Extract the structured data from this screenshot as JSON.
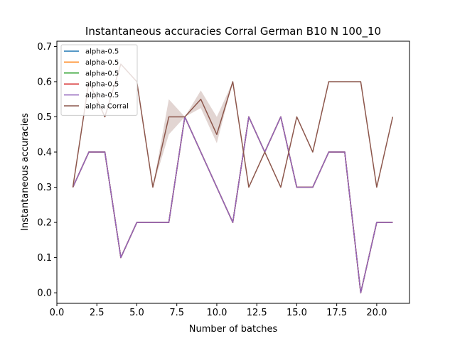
{
  "chart_data": {
    "type": "line",
    "title": "Instantaneous accuracies Corral German B10 N 100_10",
    "xlabel": "Number of batches",
    "ylabel": "Instantaneous accuracies",
    "xlim": [
      0,
      22.05
    ],
    "ylim": [
      -0.03,
      0.715
    ],
    "xticks": [
      0.0,
      2.5,
      5.0,
      7.5,
      10.0,
      12.5,
      15.0,
      17.5,
      20.0
    ],
    "xtick_labels": [
      "0.0",
      "2.5",
      "5.0",
      "7.5",
      "10.0",
      "12.5",
      "15.0",
      "17.5",
      "20.0"
    ],
    "yticks": [
      0.0,
      0.1,
      0.2,
      0.3,
      0.4,
      0.5,
      0.6,
      0.7
    ],
    "ytick_labels": [
      "0.0",
      "0.1",
      "0.2",
      "0.3",
      "0.4",
      "0.5",
      "0.6",
      "0.7"
    ],
    "grid": false,
    "legend_position": "top-left",
    "x": [
      1,
      2,
      3,
      4,
      5,
      6,
      7,
      8,
      9,
      10,
      11,
      12,
      13,
      14,
      15,
      16,
      17,
      18,
      19,
      20,
      21
    ],
    "series": [
      {
        "name": "alpha-0.5",
        "color": "#1f77b4",
        "values": [
          0.3,
          0.4,
          0.4,
          0.1,
          0.2,
          0.2,
          0.2,
          0.5,
          0.4,
          0.3,
          0.2,
          0.5,
          0.4,
          0.5,
          0.3,
          0.3,
          0.4,
          0.4,
          0.0,
          0.2,
          0.2
        ]
      },
      {
        "name": "alpha-0.5",
        "color": "#ff7f0e",
        "values": [
          0.3,
          0.4,
          0.4,
          0.1,
          0.2,
          0.2,
          0.2,
          0.5,
          0.4,
          0.3,
          0.2,
          0.5,
          0.4,
          0.5,
          0.3,
          0.3,
          0.4,
          0.4,
          0.0,
          0.2,
          0.2
        ]
      },
      {
        "name": "alpha-0.5",
        "color": "#2ca02c",
        "values": [
          0.3,
          0.4,
          0.4,
          0.1,
          0.2,
          0.2,
          0.2,
          0.5,
          0.4,
          0.3,
          0.2,
          0.5,
          0.4,
          0.5,
          0.3,
          0.3,
          0.4,
          0.4,
          0.0,
          0.2,
          0.2
        ]
      },
      {
        "name": "alpha-0.5",
        "color": "#d62728",
        "values": [
          0.3,
          0.4,
          0.4,
          0.1,
          0.2,
          0.2,
          0.2,
          0.5,
          0.4,
          0.3,
          0.2,
          0.5,
          0.4,
          0.5,
          0.3,
          0.3,
          0.4,
          0.4,
          0.0,
          0.2,
          0.2
        ]
      },
      {
        "name": "alpha-0.5",
        "color": "#9467bd",
        "values": [
          0.3,
          0.4,
          0.4,
          0.1,
          0.2,
          0.2,
          0.2,
          0.5,
          0.4,
          0.3,
          0.2,
          0.5,
          0.4,
          0.5,
          0.3,
          0.3,
          0.4,
          0.4,
          0.0,
          0.2,
          0.2
        ]
      },
      {
        "name": "alpha Corral",
        "color": "#8c564b",
        "values": [
          0.3,
          0.6,
          0.5,
          0.65,
          0.6,
          0.3,
          0.5,
          0.5,
          0.55,
          0.45,
          0.6,
          0.3,
          0.4,
          0.3,
          0.5,
          0.4,
          0.6,
          0.6,
          0.6,
          0.3,
          0.5
        ],
        "band_low": [
          0.3,
          0.6,
          0.5,
          0.65,
          0.6,
          0.3,
          0.45,
          0.5,
          0.525,
          0.425,
          0.6,
          0.3,
          0.4,
          0.3,
          0.5,
          0.4,
          0.6,
          0.6,
          0.6,
          0.3,
          0.5
        ],
        "band_high": [
          0.3,
          0.6,
          0.5,
          0.65,
          0.6,
          0.3,
          0.55,
          0.5,
          0.575,
          0.5,
          0.6,
          0.3,
          0.4,
          0.3,
          0.5,
          0.4,
          0.6,
          0.6,
          0.6,
          0.3,
          0.5
        ]
      }
    ]
  }
}
